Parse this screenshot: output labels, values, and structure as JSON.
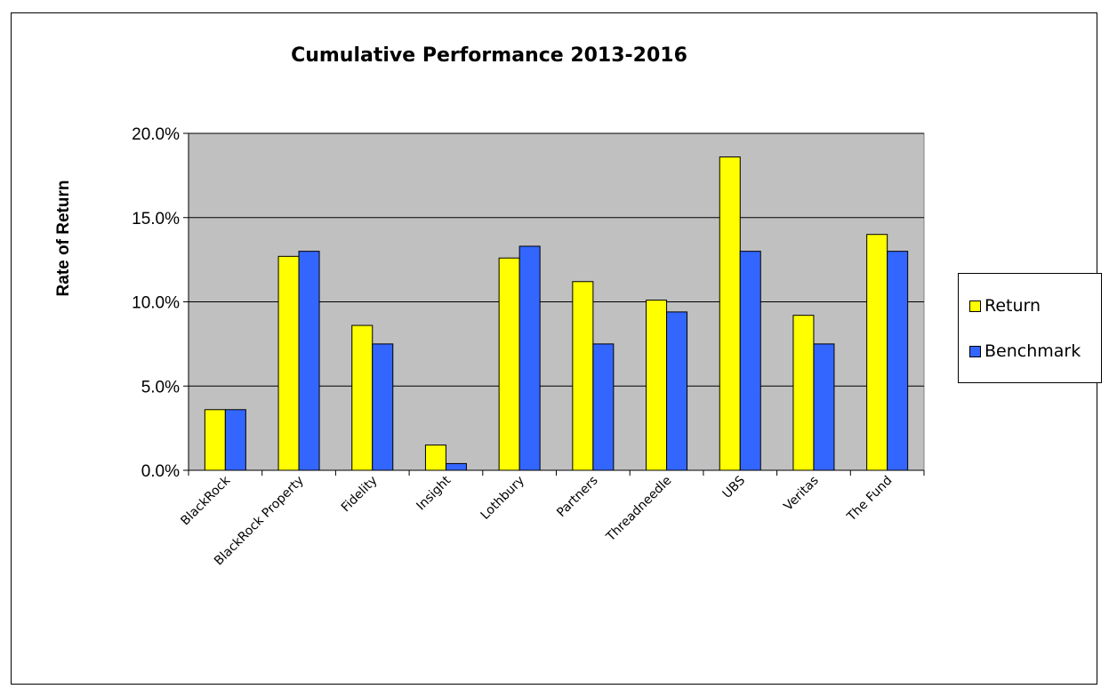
{
  "chart_data": {
    "type": "bar",
    "title": "Cumulative Performance 2013-2016",
    "xlabel": "",
    "ylabel": "Rate of Return",
    "ylim": [
      0,
      0.2
    ],
    "yticks": [
      "0.0%",
      "5.0%",
      "10.0%",
      "15.0%",
      "20.0%"
    ],
    "grid": true,
    "legend_position": "right",
    "categories": [
      "BlackRock",
      "BlackRock Property",
      "Fidelity",
      "Insight",
      "Lothbury",
      "Partners",
      "Threadneedle",
      "UBS",
      "Veritas",
      "The Fund"
    ],
    "series": [
      {
        "name": "Return",
        "color": "#ffff00",
        "values": [
          0.036,
          0.127,
          0.086,
          0.015,
          0.126,
          0.112,
          0.101,
          0.186,
          0.092,
          0.14
        ]
      },
      {
        "name": "Benchmark",
        "color": "#3366ff",
        "values": [
          0.036,
          0.13,
          0.075,
          0.004,
          0.133,
          0.075,
          0.094,
          0.13,
          0.075,
          0.13
        ]
      }
    ],
    "plot_background": "#c0c0c0"
  }
}
